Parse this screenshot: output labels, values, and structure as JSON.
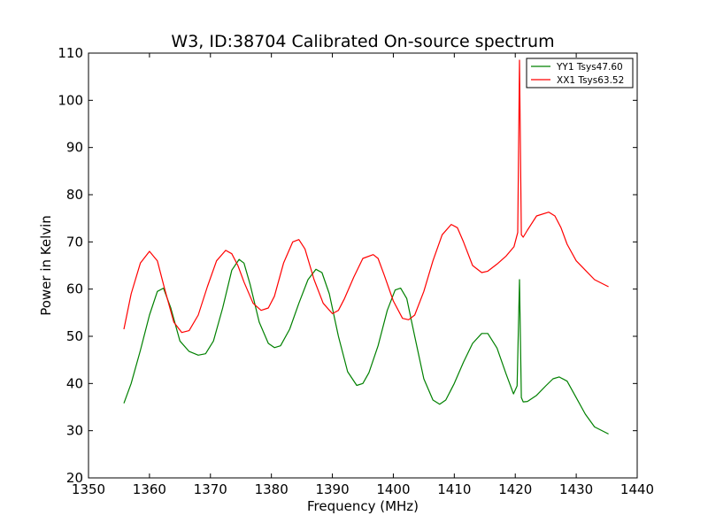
{
  "chart_data": {
    "type": "line",
    "title": "W3, ID:38704 Calibrated On-source spectrum",
    "xlabel": "Frequency (MHz)",
    "ylabel": "Power in Kelvin",
    "xlim": [
      1350,
      1440
    ],
    "ylim": [
      20,
      110
    ],
    "xticks": [
      1350,
      1360,
      1370,
      1380,
      1390,
      1400,
      1410,
      1420,
      1430,
      1440
    ],
    "yticks": [
      20,
      30,
      40,
      50,
      60,
      70,
      80,
      90,
      100,
      110
    ],
    "grid": false,
    "legend_position": "top-right",
    "series": [
      {
        "name": "YY1 Tsys47.60",
        "color": "#008000",
        "x": [
          1355.8,
          1357,
          1358.5,
          1360,
          1361.3,
          1362.3,
          1363.5,
          1365,
          1366.5,
          1368,
          1369.2,
          1370.5,
          1372,
          1373.5,
          1374.7,
          1375.5,
          1376.5,
          1378,
          1379.5,
          1380.5,
          1381.5,
          1383,
          1384.5,
          1386,
          1387.3,
          1388.3,
          1389.5,
          1391,
          1392.5,
          1394,
          1395,
          1396,
          1397.5,
          1399,
          1400.3,
          1401.2,
          1402.2,
          1403.5,
          1405,
          1406.5,
          1407.6,
          1408.6,
          1410,
          1411.5,
          1413,
          1414.5,
          1415.5,
          1417,
          1418.5,
          1419.7,
          1420.3,
          1420.7,
          1421.0,
          1421.3,
          1422,
          1423.5,
          1425,
          1426.2,
          1427.2,
          1428.5,
          1430,
          1431.5,
          1433,
          1435.3
        ],
        "y": [
          35.8,
          40,
          47,
          54.5,
          59.5,
          60.2,
          56,
          49,
          46.8,
          46,
          46.3,
          49,
          56,
          64,
          66.3,
          65.5,
          61,
          53,
          48.5,
          47.6,
          48,
          51.5,
          57,
          62,
          64.2,
          63.5,
          59,
          50,
          42.5,
          39.6,
          40,
          42.3,
          48,
          55.5,
          59.8,
          60.2,
          58,
          50,
          41,
          36.5,
          35.6,
          36.5,
          40,
          44.5,
          48.5,
          50.6,
          50.6,
          47.5,
          42,
          37.8,
          39.5,
          62,
          37,
          36.1,
          36.2,
          37.5,
          39.5,
          41,
          41.4,
          40.5,
          37,
          33.5,
          30.8,
          29.3
        ]
      },
      {
        "name": "XX1 Tsys63.52",
        "color": "#ff0000",
        "x": [
          1355.8,
          1357,
          1358.5,
          1360,
          1361.3,
          1362.5,
          1364,
          1365.3,
          1366.5,
          1368,
          1369.5,
          1371,
          1372.5,
          1373.5,
          1374.5,
          1375.5,
          1377,
          1378.3,
          1379.5,
          1380.5,
          1382,
          1383.5,
          1384.5,
          1385.5,
          1387,
          1388.5,
          1390,
          1391,
          1392,
          1393.5,
          1395,
          1396.7,
          1397.5,
          1398.5,
          1400,
          1401.5,
          1402.5,
          1403.5,
          1405,
          1406.5,
          1408,
          1409.5,
          1410.5,
          1411.5,
          1413,
          1414.5,
          1415.5,
          1417,
          1418.5,
          1419.8,
          1420.4,
          1420.7,
          1421.0,
          1421.3,
          1422,
          1423.5,
          1425.5,
          1426.5,
          1427.5,
          1428.5,
          1430,
          1431.5,
          1433,
          1435.3
        ],
        "y": [
          51.5,
          59,
          65.5,
          68,
          66,
          60,
          53,
          50.8,
          51.2,
          54.5,
          60.5,
          66,
          68.2,
          67.5,
          65,
          61.5,
          57,
          55.5,
          56,
          58.5,
          65.5,
          70,
          70.5,
          68.5,
          62,
          57,
          54.8,
          55.5,
          58,
          62.5,
          66.5,
          67.3,
          66.5,
          63,
          57.5,
          53.8,
          53.5,
          54.5,
          59.5,
          66,
          71.5,
          73.7,
          73,
          70,
          65,
          63.5,
          63.8,
          65.3,
          67,
          69,
          72,
          108.5,
          71.5,
          71,
          72.5,
          75.5,
          76.3,
          75.5,
          73,
          69.5,
          66,
          64,
          62,
          60.5
        ]
      }
    ]
  }
}
